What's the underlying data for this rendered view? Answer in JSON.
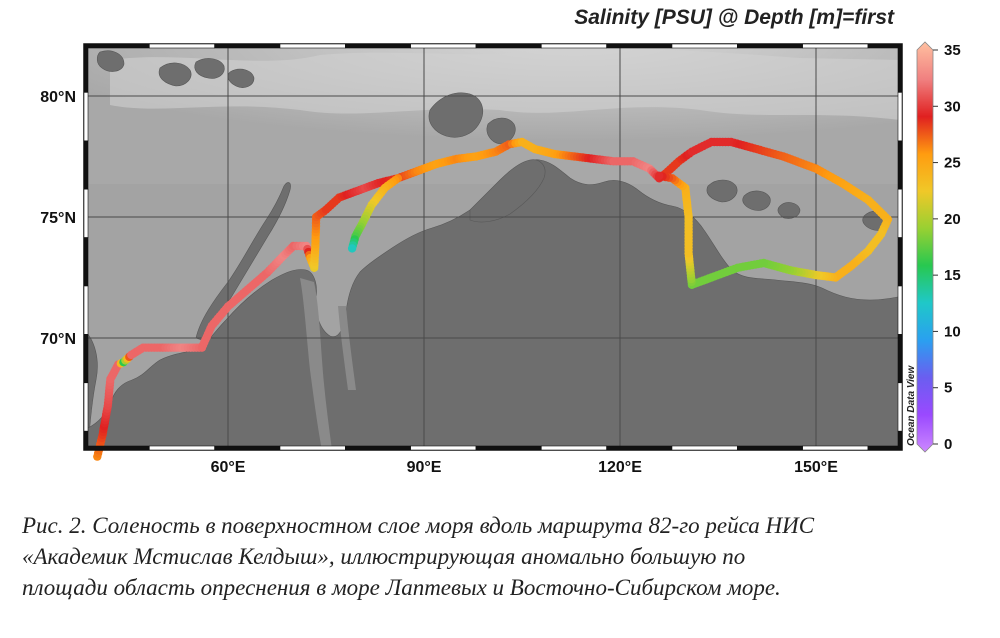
{
  "title": "Salinity [PSU] @ Depth [m]=first",
  "watermark": "Ocean Data View",
  "lat_labels": [
    "80°N",
    "75°N",
    "70°N"
  ],
  "lon_labels": [
    "60°E",
    "90°E",
    "120°E",
    "150°E"
  ],
  "colorbar": {
    "ticks": [
      "35",
      "30",
      "25",
      "20",
      "15",
      "10",
      "5",
      "0"
    ],
    "min": 0,
    "max": 35,
    "stops": [
      "#cc88ff",
      "#9a49ff",
      "#6a5ef0",
      "#2aa0f0",
      "#1fc8c8",
      "#28c850",
      "#98d032",
      "#f0c828",
      "#ff9c10",
      "#e02020",
      "#f08080",
      "#ffc0a0"
    ]
  },
  "caption": {
    "line1": "Рис. 2. Соленость в поверхностном слое моря вдоль маршрута 82-го рейса НИС",
    "line2": "«Академик Мстислав Келдыш», иллюстрирующая аномально большую по",
    "line3": "площади область опреснения в море Лаптевых и Восточно-Сибирском море."
  },
  "track": [
    {
      "lon": 40.0,
      "lat": 65.1,
      "s": 26
    },
    {
      "lon": 40.8,
      "lat": 66.0,
      "s": 28
    },
    {
      "lon": 41.6,
      "lat": 67.2,
      "s": 30
    },
    {
      "lon": 42.0,
      "lat": 68.3,
      "s": 31
    },
    {
      "lon": 43.2,
      "lat": 68.9,
      "s": 31
    },
    {
      "lon": 44.0,
      "lat": 69.0,
      "s": 16
    },
    {
      "lon": 45.2,
      "lat": 69.3,
      "s": 31
    },
    {
      "lon": 47.0,
      "lat": 69.6,
      "s": 31
    },
    {
      "lon": 50.0,
      "lat": 69.6,
      "s": 31
    },
    {
      "lon": 53.0,
      "lat": 69.6,
      "s": 32
    },
    {
      "lon": 56.0,
      "lat": 69.6,
      "s": 31
    },
    {
      "lon": 57.5,
      "lat": 70.5,
      "s": 31
    },
    {
      "lon": 60.0,
      "lat": 71.3,
      "s": 31
    },
    {
      "lon": 63.0,
      "lat": 72.0,
      "s": 31
    },
    {
      "lon": 66.0,
      "lat": 72.7,
      "s": 31
    },
    {
      "lon": 68.5,
      "lat": 73.4,
      "s": 32
    },
    {
      "lon": 70.0,
      "lat": 73.8,
      "s": 31
    },
    {
      "lon": 72.0,
      "lat": 73.8,
      "s": 32
    },
    {
      "lon": 72.6,
      "lat": 73.3,
      "s": 25
    },
    {
      "lon": 73.2,
      "lat": 72.9,
      "s": 22
    },
    {
      "lon": 73.4,
      "lat": 74.0,
      "s": 25
    },
    {
      "lon": 73.5,
      "lat": 75.0,
      "s": 27
    },
    {
      "lon": 75.0,
      "lat": 75.3,
      "s": 28
    },
    {
      "lon": 77.0,
      "lat": 75.8,
      "s": 28
    },
    {
      "lon": 79.0,
      "lat": 76.0,
      "s": 29
    },
    {
      "lon": 81.0,
      "lat": 76.2,
      "s": 30
    },
    {
      "lon": 83.0,
      "lat": 76.4,
      "s": 29
    },
    {
      "lon": 86.0,
      "lat": 76.6,
      "s": 28
    },
    {
      "lon": 89.0,
      "lat": 76.9,
      "s": 26
    },
    {
      "lon": 92.0,
      "lat": 77.2,
      "s": 25
    },
    {
      "lon": 95.0,
      "lat": 77.4,
      "s": 26
    },
    {
      "lon": 98.0,
      "lat": 77.5,
      "s": 25
    },
    {
      "lon": 101.0,
      "lat": 77.7,
      "s": 26
    },
    {
      "lon": 103.0,
      "lat": 78.0,
      "s": 27
    },
    {
      "lon": 105.0,
      "lat": 78.1,
      "s": 24
    },
    {
      "lon": 107.0,
      "lat": 77.8,
      "s": 24
    },
    {
      "lon": 110.0,
      "lat": 77.6,
      "s": 25
    },
    {
      "lon": 113.0,
      "lat": 77.5,
      "s": 27
    },
    {
      "lon": 116.0,
      "lat": 77.4,
      "s": 29
    },
    {
      "lon": 119.0,
      "lat": 77.3,
      "s": 31
    },
    {
      "lon": 122.0,
      "lat": 77.3,
      "s": 31
    },
    {
      "lon": 124.5,
      "lat": 77.0,
      "s": 32
    },
    {
      "lon": 126.0,
      "lat": 76.6,
      "s": 29
    },
    {
      "lon": 127.0,
      "lat": 76.8,
      "s": 28
    },
    {
      "lon": 129.0,
      "lat": 77.3,
      "s": 28
    },
    {
      "lon": 131.0,
      "lat": 77.7,
      "s": 29
    },
    {
      "lon": 134.0,
      "lat": 78.1,
      "s": 29
    },
    {
      "lon": 137.0,
      "lat": 78.1,
      "s": 29
    },
    {
      "lon": 141.0,
      "lat": 77.8,
      "s": 28
    },
    {
      "lon": 145.0,
      "lat": 77.5,
      "s": 27
    },
    {
      "lon": 150.0,
      "lat": 77.0,
      "s": 26
    },
    {
      "lon": 154.0,
      "lat": 76.4,
      "s": 25
    },
    {
      "lon": 158.0,
      "lat": 75.7,
      "s": 24
    },
    {
      "lon": 161.0,
      "lat": 74.9,
      "s": 24
    },
    {
      "lon": 160.0,
      "lat": 74.3,
      "s": 23
    },
    {
      "lon": 158.0,
      "lat": 73.6,
      "s": 23
    },
    {
      "lon": 155.5,
      "lat": 73.0,
      "s": 24
    },
    {
      "lon": 153.0,
      "lat": 72.5,
      "s": 24
    },
    {
      "lon": 150.0,
      "lat": 72.6,
      "s": 22
    },
    {
      "lon": 146.0,
      "lat": 72.8,
      "s": 19
    },
    {
      "lon": 142.0,
      "lat": 73.1,
      "s": 18
    },
    {
      "lon": 138.0,
      "lat": 72.9,
      "s": 18
    },
    {
      "lon": 134.0,
      "lat": 72.5,
      "s": 18
    },
    {
      "lon": 131.0,
      "lat": 72.2,
      "s": 18
    },
    {
      "lon": 130.5,
      "lat": 73.5,
      "s": 23
    },
    {
      "lon": 130.5,
      "lat": 75.0,
      "s": 23
    },
    {
      "lon": 130.0,
      "lat": 76.2,
      "s": 24
    },
    {
      "lon": 128.0,
      "lat": 76.6,
      "s": 27
    },
    {
      "lon": 126.0,
      "lat": 76.7,
      "s": 29
    }
  ],
  "track_branch": [
    {
      "lon": 86.0,
      "lat": 76.6,
      "s": 26
    },
    {
      "lon": 84.0,
      "lat": 76.2,
      "s": 24
    },
    {
      "lon": 82.0,
      "lat": 75.5,
      "s": 22
    },
    {
      "lon": 80.5,
      "lat": 74.7,
      "s": 19
    },
    {
      "lon": 79.5,
      "lat": 74.2,
      "s": 17
    },
    {
      "lon": 79.0,
      "lat": 73.7,
      "s": 13
    }
  ]
}
